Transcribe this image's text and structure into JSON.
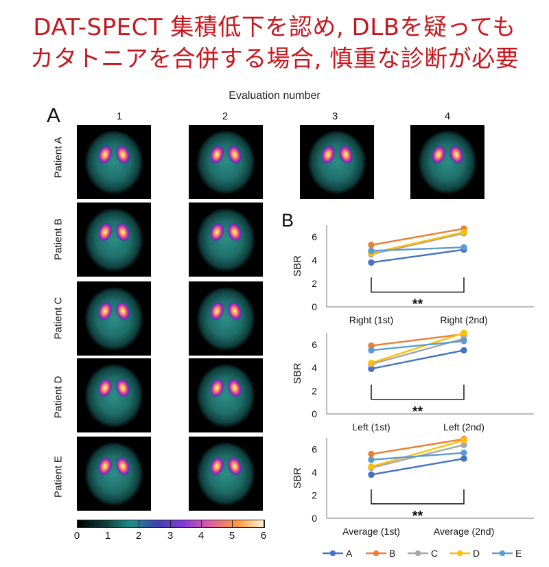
{
  "headline": {
    "line1": "DAT-SPECT 集積低下を認め, DLBを疑っても",
    "line2": "カタトニアを合併する場合, 慎重な診断が必要"
  },
  "figure": {
    "eval_title": "Evaluation number",
    "panel_a_label": "A",
    "panel_b_label": "B",
    "columns": [
      "1",
      "2",
      "3",
      "4"
    ],
    "patients": [
      {
        "label": "Patient A",
        "scans": 4
      },
      {
        "label": "Patient B",
        "scans": 2
      },
      {
        "label": "Patient C",
        "scans": 2
      },
      {
        "label": "Patient D",
        "scans": 2
      },
      {
        "label": "Patient E",
        "scans": 2
      }
    ],
    "colorbar": {
      "ticks": [
        "0",
        "1",
        "2",
        "3",
        "4",
        "5",
        "6"
      ],
      "colors": [
        "#000000",
        "#0f3b3b",
        "#1e8f86",
        "#3f3fb0",
        "#8a3ad8",
        "#e060a0",
        "#ff9a3c",
        "#fff4e0"
      ]
    }
  },
  "colors": {
    "A": "#4472c4",
    "B": "#ed7d31",
    "C": "#a5a5a5",
    "D": "#ffc000",
    "E": "#5b9bd5",
    "headline": "#c8161d"
  },
  "chart_data": [
    {
      "type": "line",
      "categories": [
        "Right (1st)",
        "Right (2nd)"
      ],
      "ylabel": "SBR",
      "ylim": [
        0,
        7
      ],
      "yticks": [
        0,
        2,
        4,
        6
      ],
      "significance": "**",
      "series": [
        {
          "name": "A",
          "values": [
            3.8,
            4.9
          ]
        },
        {
          "name": "B",
          "values": [
            5.3,
            6.7
          ]
        },
        {
          "name": "C",
          "values": [
            4.5,
            6.3
          ]
        },
        {
          "name": "D",
          "values": [
            4.6,
            6.4
          ]
        },
        {
          "name": "E",
          "values": [
            4.8,
            5.1
          ]
        }
      ]
    },
    {
      "type": "line",
      "categories": [
        "Left (1st)",
        "Left (2nd)"
      ],
      "ylabel": "SBR",
      "ylim": [
        0,
        7
      ],
      "yticks": [
        0,
        2,
        4,
        6
      ],
      "significance": "**",
      "series": [
        {
          "name": "A",
          "values": [
            3.9,
            5.5
          ]
        },
        {
          "name": "B",
          "values": [
            5.9,
            6.9
          ]
        },
        {
          "name": "C",
          "values": [
            4.3,
            6.5
          ]
        },
        {
          "name": "D",
          "values": [
            4.4,
            7.0
          ]
        },
        {
          "name": "E",
          "values": [
            5.5,
            6.3
          ]
        }
      ]
    },
    {
      "type": "line",
      "categories": [
        "Average (1st)",
        "Average (2nd)"
      ],
      "ylabel": "SBR",
      "ylim": [
        0,
        7
      ],
      "yticks": [
        0,
        2,
        4,
        6
      ],
      "significance": "**",
      "series": [
        {
          "name": "A",
          "values": [
            3.8,
            5.2
          ]
        },
        {
          "name": "B",
          "values": [
            5.6,
            6.9
          ]
        },
        {
          "name": "C",
          "values": [
            4.4,
            6.4
          ]
        },
        {
          "name": "D",
          "values": [
            4.5,
            6.8
          ]
        },
        {
          "name": "E",
          "values": [
            5.1,
            5.7
          ]
        }
      ]
    }
  ],
  "legend": [
    "A",
    "B",
    "C",
    "D",
    "E"
  ]
}
